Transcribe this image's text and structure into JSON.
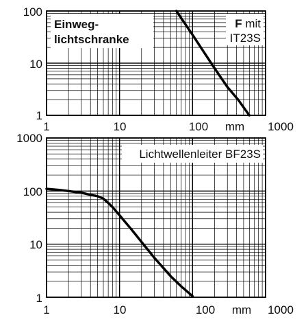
{
  "chart_data": [
    {
      "type": "line",
      "xscale": "log",
      "yscale": "log",
      "xlim": [
        1,
        1000
      ],
      "ylim": [
        1,
        100
      ],
      "grid": true,
      "x_ticks": [
        "1",
        "10",
        "100",
        "1000"
      ],
      "x_unit": "mm",
      "y_ticks": [
        "1",
        "10",
        "100"
      ],
      "annotations": {
        "left_line1": "Einweg-",
        "left_line2": "lichtschranke",
        "right_bold": "F",
        "right_rest": " mit",
        "right_line2": "IT23S"
      },
      "series": [
        {
          "x": [
            60,
            100,
            200,
            300,
            420,
            600
          ],
          "y": [
            100,
            35,
            8,
            3.5,
            2,
            1
          ]
        }
      ]
    },
    {
      "type": "line",
      "xscale": "log",
      "yscale": "log",
      "xlim": [
        1,
        1000
      ],
      "ylim": [
        1,
        1000
      ],
      "grid": true,
      "x_ticks": [
        "1",
        "10",
        "100",
        "1000"
      ],
      "x_unit": "mm",
      "y_ticks": [
        "1",
        "10",
        "100",
        "1000"
      ],
      "annotations": {
        "label": "Lichtwellenleiter BF23S"
      },
      "series": [
        {
          "x": [
            1,
            1.5,
            2,
            3,
            4,
            5,
            6,
            7,
            8,
            10,
            15,
            20,
            30,
            50,
            70,
            100
          ],
          "y": [
            110,
            105,
            100,
            93,
            85,
            80,
            72,
            60,
            50,
            35,
            18,
            11,
            5.5,
            2.5,
            1.6,
            1.05
          ]
        }
      ]
    }
  ]
}
